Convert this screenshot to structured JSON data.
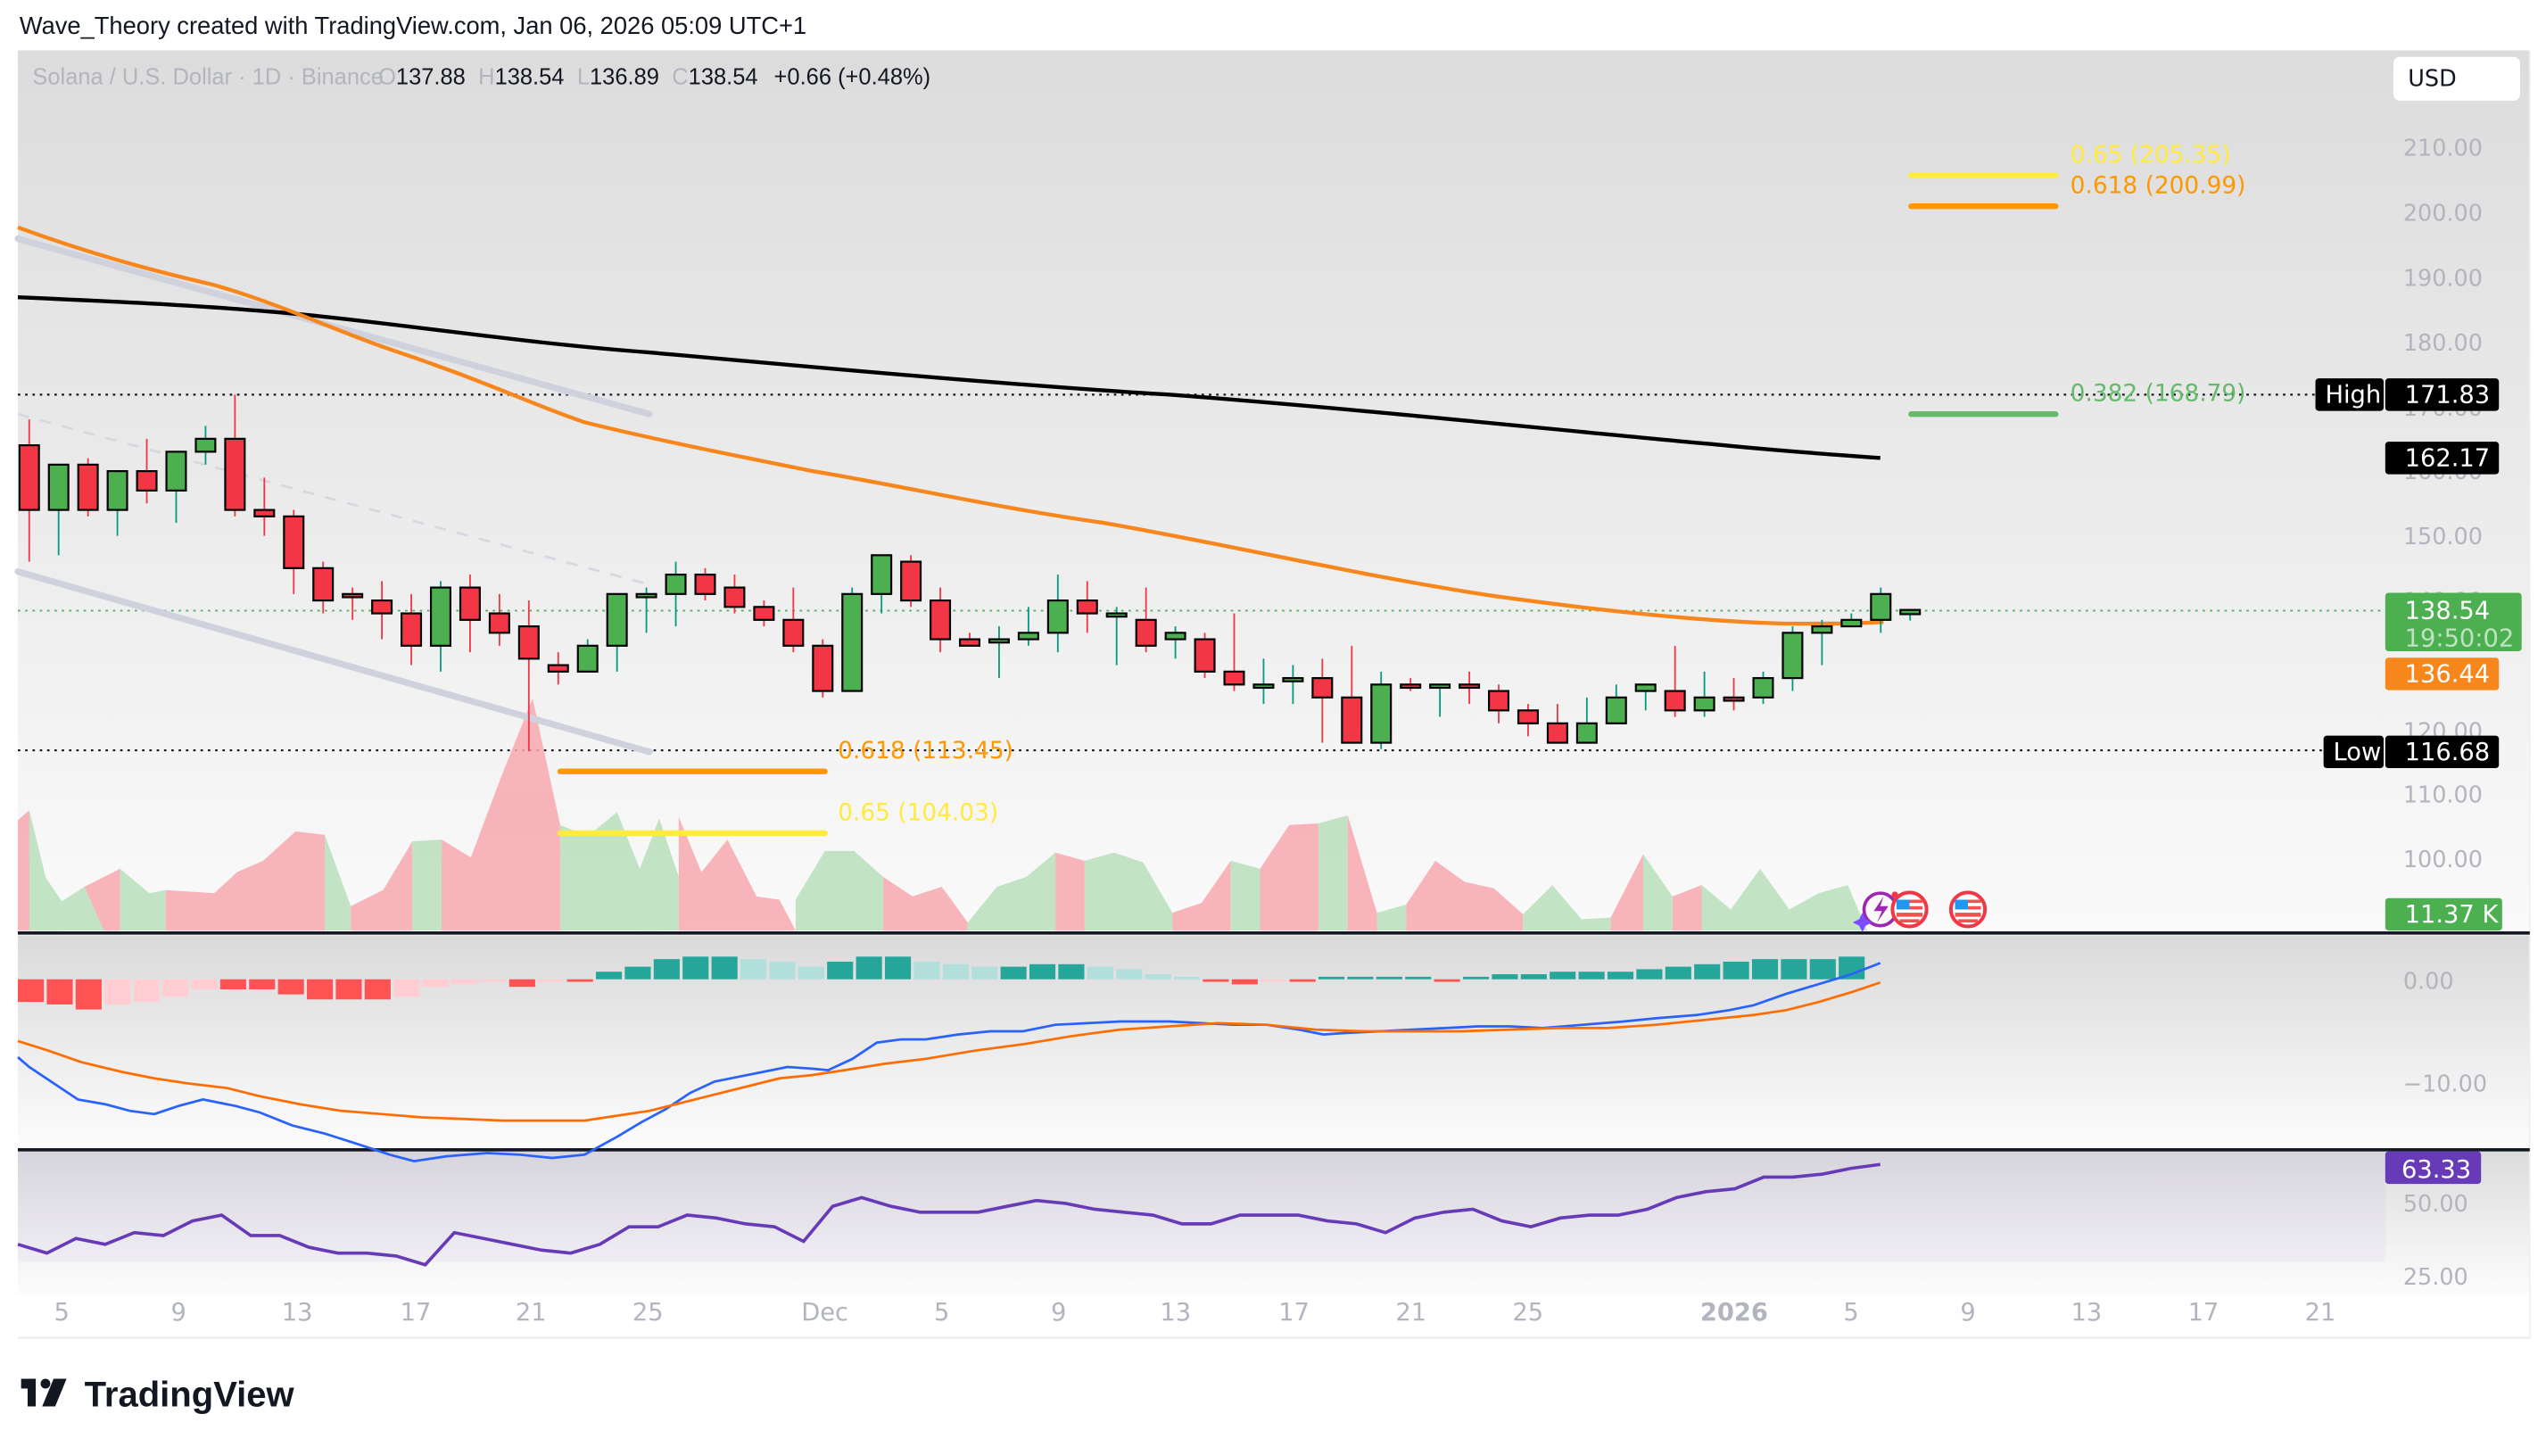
{
  "header": {
    "attribution": "Wave_Theory created with TradingView.com, Jan 06, 2026 05:09 UTC+1",
    "symbol": "Solana / U.S. Dollar · 1D · Binance",
    "ohlc": {
      "o_label": "O",
      "o": "137.88",
      "h_label": "H",
      "h": "138.54",
      "l_label": "L",
      "l": "136.89",
      "c_label": "C",
      "c": "138.54",
      "change": "+0.66 (+0.48%)"
    }
  },
  "currency_button": "USD",
  "price_axis": {
    "ticks": [
      "210.00",
      "200.00",
      "190.00",
      "180.00",
      "170.00",
      "160.00",
      "150.00",
      "140.00",
      "120.00",
      "110.00",
      "100.00"
    ],
    "high_label": "High",
    "high_value": "171.83",
    "ma200_value": "162.17",
    "last_price": "138.54",
    "countdown": "19:50:02",
    "ma50_value": "136.44",
    "low_label": "Low",
    "low_value": "116.68",
    "volume_value": "11.37 K"
  },
  "macd_axis": {
    "ticks": [
      "0.00",
      "−10.00"
    ]
  },
  "rsi_axis": {
    "ticks": [
      "50.00",
      "25.00"
    ],
    "value": "63.33"
  },
  "x_axis": {
    "ticks": [
      "5",
      "9",
      "13",
      "17",
      "21",
      "25",
      "Dec",
      "5",
      "9",
      "13",
      "17",
      "21",
      "25",
      "2026",
      "5",
      "9",
      "13",
      "17",
      "21"
    ]
  },
  "fib_levels": {
    "upper_065": "0.65 (205.35)",
    "upper_0618": "0.618 (200.99)",
    "upper_0382": "0.382 (168.79)",
    "lower_0618": "0.618 (113.45)",
    "lower_065": "0.65 (104.03)"
  },
  "logo": {
    "text": "TradingView"
  },
  "colors": {
    "up": "#4caf50",
    "down": "#f23645",
    "wick_up": "#089981",
    "wick_down": "#f23645",
    "ma50": "#f7861d",
    "ma200": "#000000",
    "fib_yellow": "#ffeb3b",
    "fib_orange": "#ff9800",
    "fib_green": "#66bb6a",
    "macd": "#2962ff",
    "signal": "#ff6d00",
    "rsi": "#673ab7",
    "last_price_bg": "#4caf50"
  },
  "chart_data": [
    {
      "type": "candlestick",
      "title": "Solana / U.S. Dollar · 1D · Binance",
      "ylabel": "USD",
      "ylim": [
        95,
        215
      ],
      "x_ticks": [
        "5",
        "9",
        "13",
        "17",
        "21",
        "25",
        "Dec",
        "5",
        "9",
        "13",
        "17",
        "21",
        "25",
        "2026",
        "5",
        "9",
        "13",
        "17",
        "21"
      ],
      "candles_start": "Nov 4, 2025",
      "candles": [
        {
          "o": 164,
          "h": 168,
          "l": 146,
          "c": 154
        },
        {
          "o": 154,
          "h": 157,
          "l": 147,
          "c": 161
        },
        {
          "o": 161,
          "h": 162,
          "l": 153,
          "c": 154
        },
        {
          "o": 154,
          "h": 158,
          "l": 150,
          "c": 160
        },
        {
          "o": 160,
          "h": 165,
          "l": 155,
          "c": 157
        },
        {
          "o": 157,
          "h": 162,
          "l": 152,
          "c": 163
        },
        {
          "o": 163,
          "h": 167,
          "l": 161,
          "c": 165
        },
        {
          "o": 165,
          "h": 171.83,
          "l": 153,
          "c": 154
        },
        {
          "o": 154,
          "h": 159,
          "l": 150,
          "c": 153
        },
        {
          "o": 153,
          "h": 154,
          "l": 141,
          "c": 145
        },
        {
          "o": 145,
          "h": 146,
          "l": 138,
          "c": 140
        },
        {
          "o": 141,
          "h": 142,
          "l": 137,
          "c": 140.5
        },
        {
          "o": 140,
          "h": 143,
          "l": 134,
          "c": 138
        },
        {
          "o": 138,
          "h": 141,
          "l": 130,
          "c": 133
        },
        {
          "o": 133,
          "h": 143,
          "l": 129,
          "c": 142
        },
        {
          "o": 142,
          "h": 144,
          "l": 132,
          "c": 137
        },
        {
          "o": 138,
          "h": 141,
          "l": 133,
          "c": 135
        },
        {
          "o": 136,
          "h": 140,
          "l": 116.68,
          "c": 131
        },
        {
          "o": 130,
          "h": 132,
          "l": 127,
          "c": 129
        },
        {
          "o": 129,
          "h": 134,
          "l": 131,
          "c": 133
        },
        {
          "o": 133,
          "h": 140,
          "l": 129,
          "c": 141
        },
        {
          "o": 141,
          "h": 142,
          "l": 135,
          "c": 141
        },
        {
          "o": 141,
          "h": 146,
          "l": 136,
          "c": 144
        },
        {
          "o": 144,
          "h": 145,
          "l": 140,
          "c": 141
        },
        {
          "o": 142,
          "h": 144,
          "l": 138,
          "c": 139
        },
        {
          "o": 139,
          "h": 140,
          "l": 136,
          "c": 137
        },
        {
          "o": 137,
          "h": 142,
          "l": 132,
          "c": 133
        },
        {
          "o": 133,
          "h": 134,
          "l": 125,
          "c": 126
        },
        {
          "o": 126,
          "h": 142,
          "l": 126,
          "c": 141
        },
        {
          "o": 141,
          "h": 146,
          "l": 138,
          "c": 147
        },
        {
          "o": 146,
          "h": 147,
          "l": 139,
          "c": 140
        },
        {
          "o": 140,
          "h": 142,
          "l": 132,
          "c": 134
        },
        {
          "o": 134,
          "h": 135,
          "l": 133,
          "c": 133
        },
        {
          "o": 134,
          "h": 136,
          "l": 128,
          "c": 134
        },
        {
          "o": 134,
          "h": 139,
          "l": 133,
          "c": 135
        },
        {
          "o": 135,
          "h": 144,
          "l": 132,
          "c": 140
        },
        {
          "o": 140,
          "h": 143,
          "l": 135,
          "c": 138
        },
        {
          "o": 138,
          "h": 139,
          "l": 130,
          "c": 138
        },
        {
          "o": 137,
          "h": 142,
          "l": 132,
          "c": 133
        },
        {
          "o": 134,
          "h": 136,
          "l": 131,
          "c": 135
        },
        {
          "o": 134,
          "h": 135,
          "l": 128,
          "c": 129
        },
        {
          "o": 129,
          "h": 138,
          "l": 126,
          "c": 127
        },
        {
          "o": 127,
          "h": 131,
          "l": 124,
          "c": 127
        },
        {
          "o": 128,
          "h": 130,
          "l": 124,
          "c": 128
        },
        {
          "o": 128,
          "h": 131,
          "l": 118,
          "c": 125
        },
        {
          "o": 125,
          "h": 133,
          "l": 119,
          "c": 118
        },
        {
          "o": 118,
          "h": 129,
          "l": 117,
          "c": 127
        },
        {
          "o": 127,
          "h": 128,
          "l": 126,
          "c": 126.5
        },
        {
          "o": 127,
          "h": 127,
          "l": 122,
          "c": 127
        },
        {
          "o": 127,
          "h": 129,
          "l": 124,
          "c": 126.5
        },
        {
          "o": 126,
          "h": 127,
          "l": 121,
          "c": 123
        },
        {
          "o": 123,
          "h": 124,
          "l": 119,
          "c": 121
        },
        {
          "o": 121,
          "h": 124,
          "l": 118,
          "c": 118
        },
        {
          "o": 118,
          "h": 125,
          "l": 118,
          "c": 121
        },
        {
          "o": 121,
          "h": 127,
          "l": 121,
          "c": 125
        },
        {
          "o": 126,
          "h": 127,
          "l": 123,
          "c": 127
        },
        {
          "o": 126,
          "h": 133,
          "l": 122,
          "c": 123
        },
        {
          "o": 123,
          "h": 129,
          "l": 122,
          "c": 125
        },
        {
          "o": 125,
          "h": 128,
          "l": 123,
          "c": 124.5
        },
        {
          "o": 125,
          "h": 129,
          "l": 124,
          "c": 128
        },
        {
          "o": 128,
          "h": 136,
          "l": 126,
          "c": 135
        },
        {
          "o": 135,
          "h": 137,
          "l": 130,
          "c": 136
        },
        {
          "o": 136,
          "h": 138,
          "l": 136,
          "c": 137
        },
        {
          "o": 137,
          "h": 142,
          "l": 135,
          "c": 141
        },
        {
          "o": 137.88,
          "h": 138.54,
          "l": 136.89,
          "c": 138.54
        }
      ],
      "overlays": {
        "ma50_last": 136.44,
        "ma200_last": 162.17,
        "high": 171.83,
        "low": 116.68,
        "fib": [
          {
            "level": 0.65,
            "price": 205.35
          },
          {
            "level": 0.618,
            "price": 200.99
          },
          {
            "level": 0.382,
            "price": 168.79
          },
          {
            "level": 0.618,
            "price": 113.45
          },
          {
            "level": 0.65,
            "price": 104.03
          }
        ]
      }
    },
    {
      "type": "area",
      "title": "Volume",
      "last_value": "11.37 K"
    },
    {
      "type": "bar+line",
      "title": "MACD",
      "ylim": [
        -14,
        3
      ],
      "y_ticks": [
        0,
        -10
      ],
      "histogram_sign_sequence": "negative Nov 4–Nov 23, positive Nov 24–Dec 15, small negative Dec 16–Dec 19, positive Dec 20–Jan 6 rising",
      "macd_last": 1.0,
      "signal_last": -1.5
    },
    {
      "type": "line",
      "title": "RSI",
      "y_ticks": [
        50,
        25
      ],
      "last_value": 63.33,
      "values": [
        36,
        33,
        38,
        36,
        40,
        39,
        44,
        46,
        39,
        39,
        35,
        33,
        33,
        32,
        29,
        40,
        38,
        36,
        34,
        33,
        36,
        42,
        42,
        46,
        45,
        43,
        42,
        37,
        49,
        52,
        49,
        47,
        47,
        47,
        49,
        51,
        50,
        48,
        47,
        46,
        43,
        43,
        46,
        46,
        46,
        44,
        43,
        40,
        45,
        47,
        48,
        44,
        42,
        45,
        46,
        46,
        48,
        52,
        54,
        55,
        59,
        59,
        60,
        62,
        63.33
      ]
    }
  ]
}
